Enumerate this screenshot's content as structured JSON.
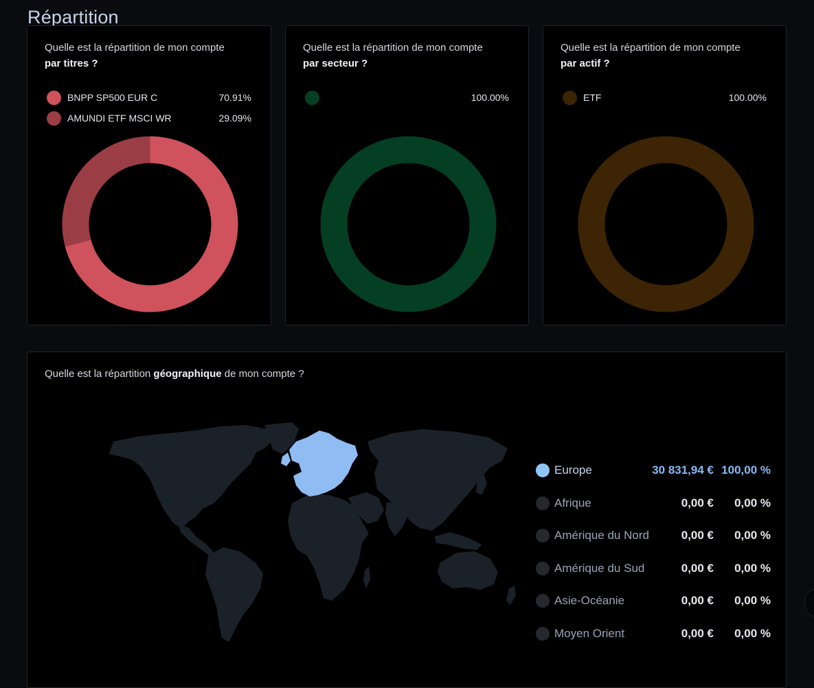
{
  "page": {
    "title": "Répartition"
  },
  "cards": {
    "titres": {
      "question_prefix": "Quelle est la répartition de mon compte",
      "question_bold": "par titres ?",
      "items": [
        {
          "name": "BNPP SP500 EUR C",
          "pct_label": "70.91%",
          "value": 70.91,
          "color": "#cf525c"
        },
        {
          "name": "AMUNDI ETF MSCI WR",
          "pct_label": "29.09%",
          "value": 29.09,
          "color": "#9b3d45"
        }
      ]
    },
    "secteur": {
      "question_prefix": "Quelle est la répartition de mon compte",
      "question_bold": "par secteur ?",
      "items": [
        {
          "name": "",
          "pct_label": "100.00%",
          "value": 100,
          "color": "#043f24"
        }
      ]
    },
    "actif": {
      "question_prefix": "Quelle est la répartition de mon compte",
      "question_bold": "par actif ?",
      "items": [
        {
          "name": "ETF",
          "pct_label": "100.00%",
          "value": 100,
          "color": "#3d2404"
        }
      ]
    }
  },
  "geo": {
    "question_prefix": "Quelle est la répartition",
    "question_bold": "géographique",
    "question_suffix": "de mon compte ?",
    "map_land_color": "#1b2129",
    "map_highlight_color": "#8fbcf2",
    "regions": [
      {
        "name": "Europe",
        "amount": "30 831,94 €",
        "pct": "100,00 %",
        "active": true,
        "color": "#8fc6f6"
      },
      {
        "name": "Afrique",
        "amount": "0,00 €",
        "pct": "0,00 %",
        "active": false,
        "color": "#25282d"
      },
      {
        "name": "Amérique du Nord",
        "amount": "0,00 €",
        "pct": "0,00 %",
        "active": false,
        "color": "#25282d"
      },
      {
        "name": "Amérique du Sud",
        "amount": "0,00 €",
        "pct": "0,00 %",
        "active": false,
        "color": "#25282d"
      },
      {
        "name": "Asie-Océanie",
        "amount": "0,00 €",
        "pct": "0,00 %",
        "active": false,
        "color": "#25282d"
      },
      {
        "name": "Moyen Orient",
        "amount": "0,00 €",
        "pct": "0,00 %",
        "active": false,
        "color": "#25282d"
      }
    ]
  }
}
